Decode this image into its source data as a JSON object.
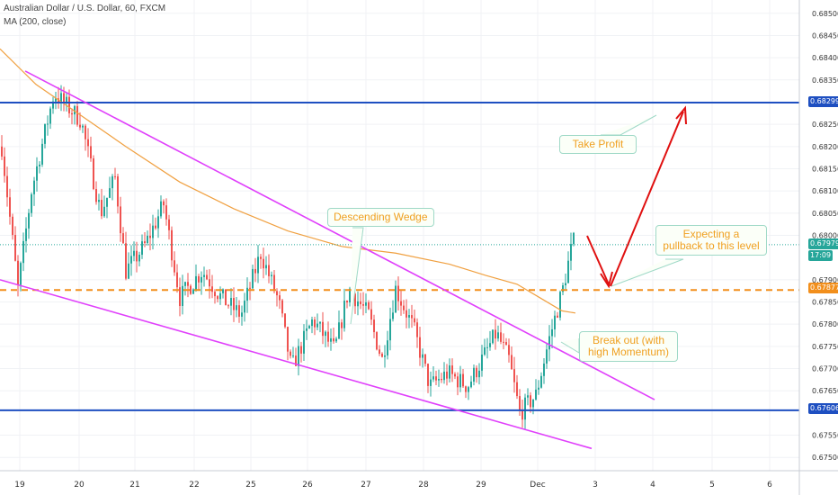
{
  "header": {
    "symbol": "Australian Dollar / U.S. Dollar, 60, FXCM",
    "indicator": "MA (200, close)"
  },
  "chart_data": {
    "type": "candlestick",
    "x_ticks": [
      "19",
      "20",
      "21",
      "22",
      "25",
      "26",
      "27",
      "28",
      "29",
      "Dec",
      "3",
      "4",
      "5",
      "6"
    ],
    "y_ticks": [
      "0.68500",
      "0.68450",
      "0.68400",
      "0.68350",
      "0.68250",
      "0.68200",
      "0.68150",
      "0.68100",
      "0.68050",
      "0.68000",
      "0.67900",
      "0.67850",
      "0.67800",
      "0.67750",
      "0.67700",
      "0.67650",
      "0.67550",
      "0.67500"
    ],
    "ylim": [
      0.6747,
      0.6853
    ],
    "price_labels": [
      {
        "text": "0.68299",
        "value": 0.68299,
        "color": "#1e4fc1"
      },
      {
        "text": "0.67979",
        "value": 0.67979,
        "color": "#26a69a"
      },
      {
        "text": "17:09",
        "value": 0.67957,
        "color": "#26a69a"
      },
      {
        "text": "0.67877",
        "value": 0.67877,
        "color": "#f28f1c"
      },
      {
        "text": "0.67606",
        "value": 0.67606,
        "color": "#1e4fc1"
      }
    ],
    "levels": {
      "resistance": 0.68299,
      "support": 0.67606,
      "pullback": 0.67877,
      "last": 0.67979
    },
    "annotations": {
      "descending_wedge": "Descending Wedge",
      "take_profit": "Take Profit",
      "expecting_pullback": "Expecting a pullback to this level",
      "break_out": "Break out (with high Momentum)"
    },
    "colors": {
      "up": "#26a69a",
      "down": "#ef5350",
      "ma": "#f0a040",
      "wedge": "#e040fb",
      "level": "#1e4fc1",
      "arrow": "#e01010"
    }
  }
}
